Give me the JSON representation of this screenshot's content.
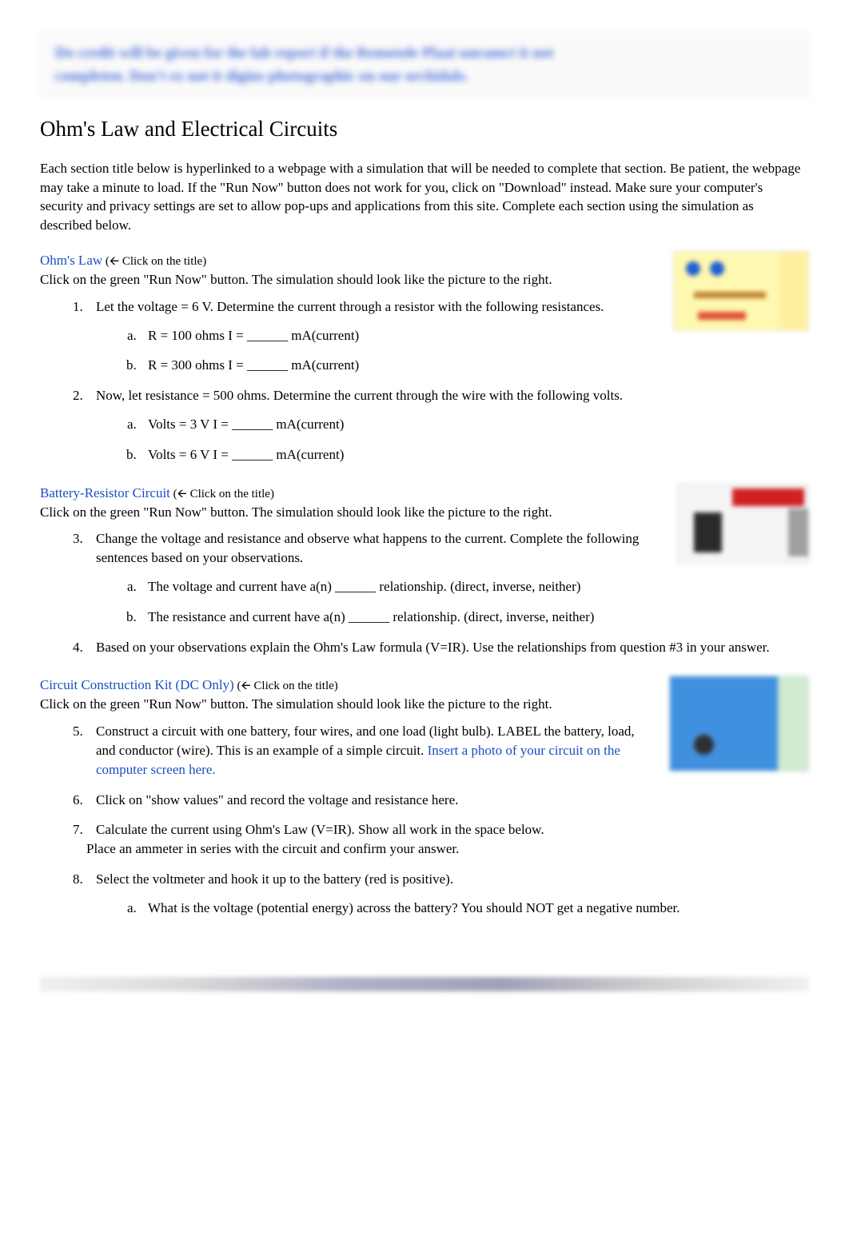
{
  "blur_box": {
    "line1": "Do credit will be given for the lab report if the Remotole Plaat unramct it not",
    "line2": "completen. Don't ex not it digins photographic on our orchidals."
  },
  "main_title": "Ohm's Law and Electrical Circuits",
  "intro": "Each section title below is hyperlinked to a webpage with a simulation that will be needed to complete that section.  Be patient, the webpage may take a minute to load.  If the \"Run Now\" button does not work for you, click on \"Download\" instead.  Make sure your computer's security and privacy settings are set to allow pop-ups and applications from this site.  Complete each section using the simulation as described below.",
  "sections": {
    "ohms_law": {
      "title": "Ohm's Law",
      "click_hint": "  (🡨   Click on the title)",
      "run_now": "Click on the green \"Run Now\" button. The simulation should look like the picture to the right."
    },
    "battery_resistor": {
      "title": "Battery-Resistor Circuit",
      "click_hint": "   (🡨   Click on the title)",
      "run_now": "Click on the green \"Run Now\" button. The simulation should look like the picture to the right."
    },
    "circuit_kit": {
      "title": "Circuit Construction Kit (DC Only)",
      "click_hint": "    (🡨   Click on the title)",
      "run_now": "Click on the green \"Run Now\" button.  The simulation should look like the picture to the right."
    }
  },
  "q1": {
    "text": "Let the voltage = 6 V. Determine the current through a resistor with the following resistances.",
    "a": "R = 100 ohms       I = ______ mA(current)",
    "b": "R = 300 ohms      I = ______ mA(current)"
  },
  "q2": {
    "text": "Now, let resistance = 500 ohms. Determine the current through the wire with the following volts.",
    "a": "Volts = 3 V          I =  ______ mA(current)",
    "b": "Volts = 6 V          I =  ______ mA(current)"
  },
  "q3": {
    "text": "Change the voltage and resistance and observe what happens to the current.  Complete the following sentences based on your observations.",
    "a": "The voltage and current have a(n) ______ relationship. (direct, inverse, neither)",
    "b": "The resistance and current have a(n) ______ relationship. (direct, inverse, neither)"
  },
  "q4": {
    "text": "Based on your observations explain the Ohm's Law formula (V=IR).  Use the relationships from question #3 in your answer."
  },
  "q5": {
    "text": "Construct a circuit with one battery, four wires, and one load (light bulb). LABEL the battery, load, and conductor (wire). This is an example of a simple circuit. ",
    "link": "Insert a photo of your circuit on the computer screen here."
  },
  "q6": {
    "text": "Click on \"show values\" and record the voltage and resistance here."
  },
  "q7": {
    "text": "Calculate the current using Ohm's Law (V=IR). Show all work in the space below.",
    "text2": "Place an ammeter in series with the circuit and confirm your answer."
  },
  "q8": {
    "text": "Select the voltmeter and hook it up to the battery (red is positive).",
    "a": "What is the voltage (potential energy) across the battery? You should NOT get a negative number."
  },
  "colors": {
    "link": "#1a4fc4",
    "text": "#000000",
    "background": "#ffffff"
  }
}
